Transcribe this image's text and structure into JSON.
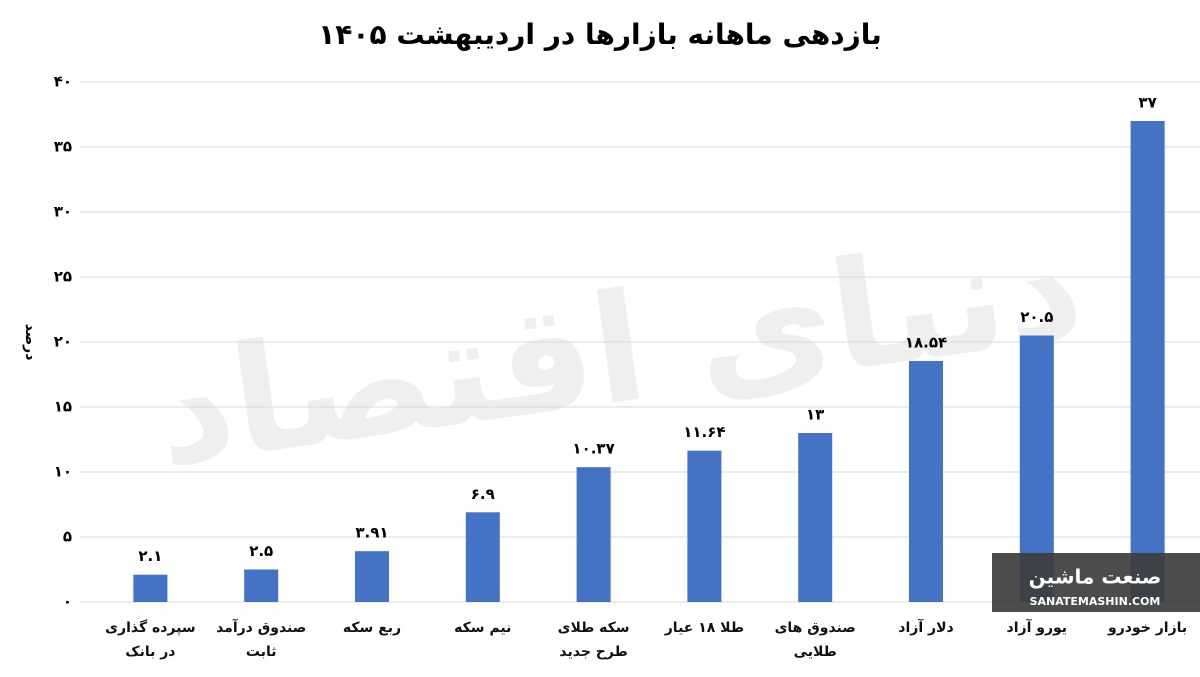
{
  "chart_data": {
    "type": "bar",
    "title": "بازدهی ماهانه بازارها در اردیبهشت ۱۴۰۵",
    "y_label": "درصد",
    "categories": [
      "سپرده گذاری در بانک",
      "صندوق درآمد ثابت",
      "ربع سکه",
      "نیم سکه",
      "سکه طلای طرح جدید",
      "طلا ۱۸ عیار",
      "صندوق های طلایی",
      "دلار آزاد",
      "یورو آزاد",
      "بازار خودرو"
    ],
    "values": [
      2.1,
      2.5,
      3.91,
      6.9,
      10.37,
      11.64,
      13,
      18.54,
      20.5,
      37
    ],
    "value_labels": [
      "۲.۱",
      "۲.۵",
      "۳.۹۱",
      "۶.۹",
      "۱۰.۳۷",
      "۱۱.۶۴",
      "۱۳",
      "۱۸.۵۴",
      "۲۰.۵",
      "۳۷"
    ],
    "color": "#4472c4",
    "ylim": [
      0,
      40
    ],
    "yticks": [
      {
        "value": 0,
        "label": "۰"
      },
      {
        "value": 5,
        "label": "۵"
      },
      {
        "value": 10,
        "label": "۱۰"
      },
      {
        "value": 15,
        "label": "۱۵"
      },
      {
        "value": 20,
        "label": "۲۰"
      },
      {
        "value": 25,
        "label": "۲۵"
      },
      {
        "value": 30,
        "label": "۳۰"
      },
      {
        "value": 35,
        "label": "۳۵"
      },
      {
        "value": 40,
        "label": "۴۰"
      }
    ],
    "grid": true,
    "watermark": "دنیای اقتصاد",
    "logo_text": "صنعت ماشین",
    "logo_url": "SANATEMASHIN.COM"
  }
}
